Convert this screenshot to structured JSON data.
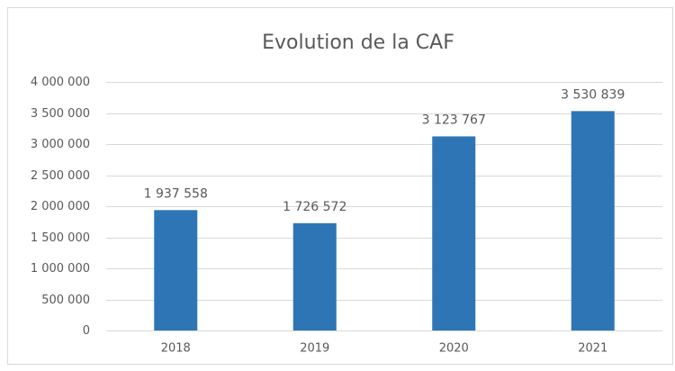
{
  "chart_data": {
    "type": "bar",
    "title": "Evolution de la CAF",
    "categories": [
      "2018",
      "2019",
      "2020",
      "2021"
    ],
    "values": [
      1937558,
      1726572,
      3123767,
      3530839
    ],
    "value_labels": [
      "1 937 558",
      "1 726 572",
      "3 123 767",
      "3 530 839"
    ],
    "color": "#2e75b6",
    "ylim": [
      0,
      4000000
    ],
    "yticks": [
      0,
      {
        "value": 500000,
        "label": "500 000"
      },
      {
        "value": 1000000,
        "label": "1 000 000"
      },
      {
        "value": 1500000,
        "label": "1 500 000"
      },
      {
        "value": 2000000,
        "label": "2 000 000"
      },
      {
        "value": 2500000,
        "label": "2 500 000"
      },
      {
        "value": 3000000,
        "label": "3 000 000"
      },
      {
        "value": 3500000,
        "label": "3 500 000"
      },
      {
        "value": 4000000,
        "label": "4 000 000"
      }
    ],
    "grid": true
  }
}
